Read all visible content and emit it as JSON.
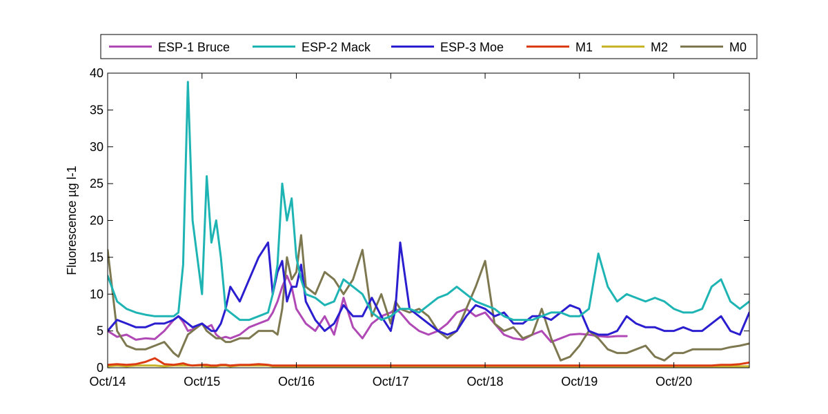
{
  "chart_data": {
    "type": "line",
    "title": "",
    "xlabel": "",
    "ylabel": "Fluorescence µg l-1",
    "xlim": [
      "Oct/14",
      "Oct/20+0.8"
    ],
    "ylim": [
      0,
      40
    ],
    "x_ticks": [
      "Oct/14",
      "Oct/15",
      "Oct/16",
      "Oct/17",
      "Oct/18",
      "Oct/19",
      "Oct/20"
    ],
    "y_ticks": [
      0,
      5,
      10,
      15,
      20,
      25,
      30,
      35,
      40
    ],
    "grid": false,
    "legend_position": "top",
    "x_values_years_since_oct14": [
      0.0,
      0.1,
      0.2,
      0.3,
      0.4,
      0.5,
      0.6,
      0.7,
      0.75,
      0.8,
      0.85,
      0.9,
      1.0,
      1.05,
      1.1,
      1.15,
      1.2,
      1.25,
      1.3,
      1.4,
      1.5,
      1.6,
      1.7,
      1.75,
      1.8,
      1.85,
      1.9,
      1.95,
      2.0,
      2.05,
      2.1,
      2.2,
      2.3,
      2.4,
      2.5,
      2.6,
      2.7,
      2.8,
      2.9,
      3.0,
      3.05,
      3.1,
      3.2,
      3.3,
      3.4,
      3.5,
      3.6,
      3.7,
      3.8,
      3.9,
      4.0,
      4.1,
      4.2,
      4.3,
      4.4,
      4.5,
      4.6,
      4.7,
      4.8,
      4.9,
      5.0,
      5.1,
      5.2,
      5.3,
      5.4,
      5.5,
      5.6,
      5.7,
      5.8,
      5.9,
      6.0,
      6.1,
      6.2,
      6.3,
      6.4,
      6.5,
      6.6,
      6.7,
      6.8
    ],
    "series": [
      {
        "name": "ESP-1 Bruce",
        "color": "#b048b5",
        "values": [
          5.0,
          4.2,
          4.5,
          3.8,
          4.0,
          3.9,
          5.0,
          6.5,
          7.0,
          6.2,
          5.0,
          5.2,
          6.0,
          5.5,
          5.8,
          4.5,
          4.0,
          4.2,
          4.0,
          4.5,
          5.5,
          6.0,
          6.5,
          7.5,
          9.0,
          11.0,
          12.5,
          11.0,
          8.0,
          7.0,
          6.0,
          5.0,
          7.0,
          4.5,
          9.5,
          5.5,
          4.0,
          6.0,
          7.0,
          7.5,
          8.0,
          7.5,
          6.0,
          5.0,
          4.5,
          5.0,
          6.0,
          7.5,
          8.0,
          7.0,
          7.5,
          6.0,
          4.5,
          4.0,
          3.8,
          4.5,
          5.0,
          3.5,
          4.0,
          4.5,
          4.6,
          4.5,
          4.3,
          4.2,
          4.3,
          4.3,
          null,
          null,
          null,
          null,
          null,
          null,
          null,
          null,
          null,
          null,
          null,
          null,
          null
        ]
      },
      {
        "name": "ESP-2 Mack",
        "color": "#1eb4b4",
        "values": [
          12.5,
          9.0,
          8.0,
          7.5,
          7.2,
          7.0,
          7.0,
          7.0,
          7.5,
          14.0,
          38.8,
          20.0,
          10.0,
          26.0,
          17.0,
          20.0,
          15.0,
          8.0,
          7.5,
          6.5,
          6.5,
          7.0,
          7.5,
          10.0,
          14.0,
          25.0,
          20.0,
          23.0,
          15.0,
          12.0,
          10.0,
          9.5,
          8.5,
          9.0,
          12.0,
          11.0,
          10.0,
          7.5,
          6.5,
          7.0,
          7.5,
          8.0,
          8.0,
          7.5,
          8.5,
          9.5,
          10.0,
          11.0,
          10.0,
          9.0,
          8.5,
          8.0,
          7.0,
          6.5,
          6.5,
          6.5,
          7.0,
          7.5,
          7.5,
          7.0,
          7.0,
          8.0,
          15.5,
          11.0,
          9.0,
          10.0,
          9.5,
          9.0,
          9.5,
          9.0,
          8.0,
          7.5,
          7.5,
          8.0,
          11.0,
          12.0,
          9.0,
          8.0,
          9.0
        ]
      },
      {
        "name": "ESP-3 Moe",
        "color": "#2a1ecf",
        "values": [
          5.0,
          6.5,
          6.0,
          5.5,
          5.5,
          6.0,
          6.0,
          6.5,
          7.0,
          6.5,
          6.0,
          5.5,
          6.0,
          5.5,
          5.0,
          5.0,
          6.0,
          8.0,
          11.0,
          9.0,
          12.0,
          15.0,
          17.0,
          10.0,
          13.0,
          14.5,
          9.0,
          11.0,
          11.0,
          14.0,
          9.0,
          6.5,
          5.0,
          6.0,
          8.5,
          7.0,
          7.0,
          9.5,
          7.0,
          5.0,
          8.0,
          17.0,
          8.0,
          7.0,
          6.0,
          5.0,
          4.5,
          5.0,
          7.0,
          8.5,
          8.0,
          7.0,
          7.5,
          6.0,
          6.0,
          7.0,
          7.0,
          6.5,
          7.5,
          8.5,
          8.0,
          5.0,
          4.5,
          4.5,
          5.0,
          7.0,
          6.0,
          5.5,
          5.5,
          5.0,
          5.0,
          5.5,
          5.0,
          5.0,
          6.0,
          7.0,
          5.0,
          4.5,
          7.5
        ]
      },
      {
        "name": "M1",
        "color": "#dc3c14",
        "values": [
          0.4,
          0.5,
          0.4,
          0.5,
          0.8,
          1.3,
          0.5,
          0.4,
          0.5,
          0.6,
          0.4,
          0.3,
          0.4,
          0.4,
          0.3,
          0.3,
          0.4,
          0.4,
          0.3,
          0.4,
          0.4,
          0.5,
          0.4,
          0.3,
          0.3,
          0.3,
          0.3,
          0.3,
          0.3,
          0.3,
          0.3,
          0.3,
          0.3,
          0.3,
          0.3,
          0.3,
          0.3,
          0.3,
          0.3,
          0.3,
          0.3,
          0.3,
          0.3,
          0.3,
          0.3,
          0.3,
          0.3,
          0.3,
          0.3,
          0.3,
          0.3,
          0.3,
          0.3,
          0.3,
          0.3,
          0.3,
          0.3,
          0.3,
          0.3,
          0.3,
          0.3,
          0.3,
          0.3,
          0.3,
          0.3,
          0.3,
          0.3,
          0.3,
          0.3,
          0.3,
          0.3,
          0.3,
          0.3,
          0.3,
          0.3,
          0.4,
          0.4,
          0.5,
          0.7
        ]
      },
      {
        "name": "M2",
        "color": "#c8b428",
        "values": [
          0.2,
          0.3,
          0.2,
          0.3,
          0.3,
          0.3,
          0.2,
          0.3,
          0.3,
          0.3,
          0.3,
          0.3,
          0.3,
          0.2,
          0.2,
          0.2,
          0.3,
          0.3,
          0.2,
          0.3,
          0.3,
          0.3,
          0.3,
          0.2,
          0.2,
          0.2,
          0.2,
          0.2,
          0.2,
          0.2,
          0.2,
          0.2,
          0.2,
          0.2,
          0.2,
          0.2,
          0.2,
          0.2,
          0.2,
          0.2,
          0.2,
          0.2,
          0.2,
          0.2,
          0.2,
          0.2,
          0.2,
          0.2,
          0.2,
          0.2,
          0.2,
          0.2,
          0.2,
          0.2,
          0.2,
          0.2,
          0.2,
          0.2,
          0.2,
          0.2,
          0.2,
          0.2,
          0.2,
          0.2,
          0.2,
          0.2,
          0.2,
          0.2,
          0.2,
          0.2,
          0.2,
          0.2,
          0.2,
          0.2,
          0.2,
          0.2,
          0.2,
          0.2,
          0.2
        ]
      },
      {
        "name": "M0",
        "color": "#7d7850",
        "values": [
          16.0,
          5.0,
          3.0,
          2.5,
          2.5,
          3.0,
          3.5,
          2.0,
          1.5,
          3.0,
          4.5,
          5.0,
          6.0,
          5.0,
          4.5,
          4.0,
          4.0,
          3.5,
          3.5,
          4.0,
          4.0,
          5.0,
          5.0,
          5.0,
          4.5,
          8.0,
          15.0,
          12.0,
          13.0,
          18.0,
          11.0,
          10.0,
          13.0,
          12.0,
          10.0,
          12.0,
          16.0,
          7.0,
          10.0,
          6.0,
          9.0,
          8.0,
          7.5,
          8.0,
          7.0,
          5.0,
          4.0,
          5.0,
          8.0,
          11.0,
          14.5,
          6.0,
          5.0,
          5.5,
          4.0,
          4.5,
          8.0,
          4.0,
          1.0,
          1.5,
          3.0,
          5.0,
          4.0,
          2.5,
          2.0,
          2.0,
          2.5,
          3.0,
          1.5,
          1.0,
          2.0,
          2.0,
          2.5,
          2.5,
          2.5,
          2.5,
          2.8,
          3.0,
          3.3
        ]
      }
    ]
  }
}
